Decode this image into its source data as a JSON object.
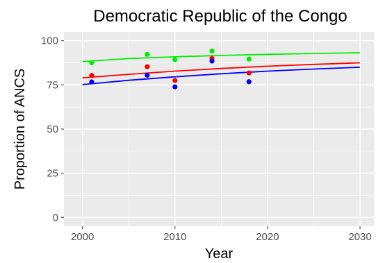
{
  "chart_data": {
    "type": "scatter",
    "title": "Democratic Republic of the Congo",
    "xlabel": "Year",
    "ylabel": "Proportion of ANCS",
    "xlim": [
      1998,
      2031.5
    ],
    "ylim": [
      -5,
      105
    ],
    "x_ticks": [
      2000,
      2010,
      2020,
      2030
    ],
    "y_ticks": [
      0,
      25,
      50,
      75,
      100
    ],
    "grid": true,
    "legend": "none",
    "panel_background": "#ebebeb",
    "grid_color": "#ffffff",
    "series": [
      {
        "color": "#00ee00",
        "points": {
          "x": [
            2001,
            2007,
            2010,
            2014,
            2018
          ],
          "y": [
            87.5,
            92.3,
            89.3,
            94.2,
            89.6
          ]
        },
        "trend": {
          "x": [
            2000,
            2005,
            2010,
            2015,
            2020,
            2025,
            2030
          ],
          "y": [
            88.2,
            89.9,
            90.9,
            91.7,
            92.3,
            92.8,
            93.2
          ]
        }
      },
      {
        "color": "#ff0000",
        "points": {
          "x": [
            2001,
            2007,
            2010,
            2014,
            2018
          ],
          "y": [
            80.4,
            85.3,
            77.5,
            90.0,
            81.8
          ]
        },
        "trend": {
          "x": [
            2000,
            2005,
            2010,
            2015,
            2020,
            2025,
            2030
          ],
          "y": [
            79.0,
            81.0,
            82.8,
            84.3,
            85.6,
            86.6,
            87.5
          ]
        }
      },
      {
        "color": "#0000ff",
        "points": {
          "x": [
            2001,
            2007,
            2010,
            2014,
            2018
          ],
          "y": [
            76.7,
            80.5,
            73.9,
            88.5,
            76.8
          ]
        },
        "trend": {
          "x": [
            2000,
            2005,
            2010,
            2015,
            2020,
            2025,
            2030
          ],
          "y": [
            75.2,
            77.6,
            79.6,
            81.3,
            82.8,
            84.0,
            85.0
          ]
        }
      }
    ]
  }
}
